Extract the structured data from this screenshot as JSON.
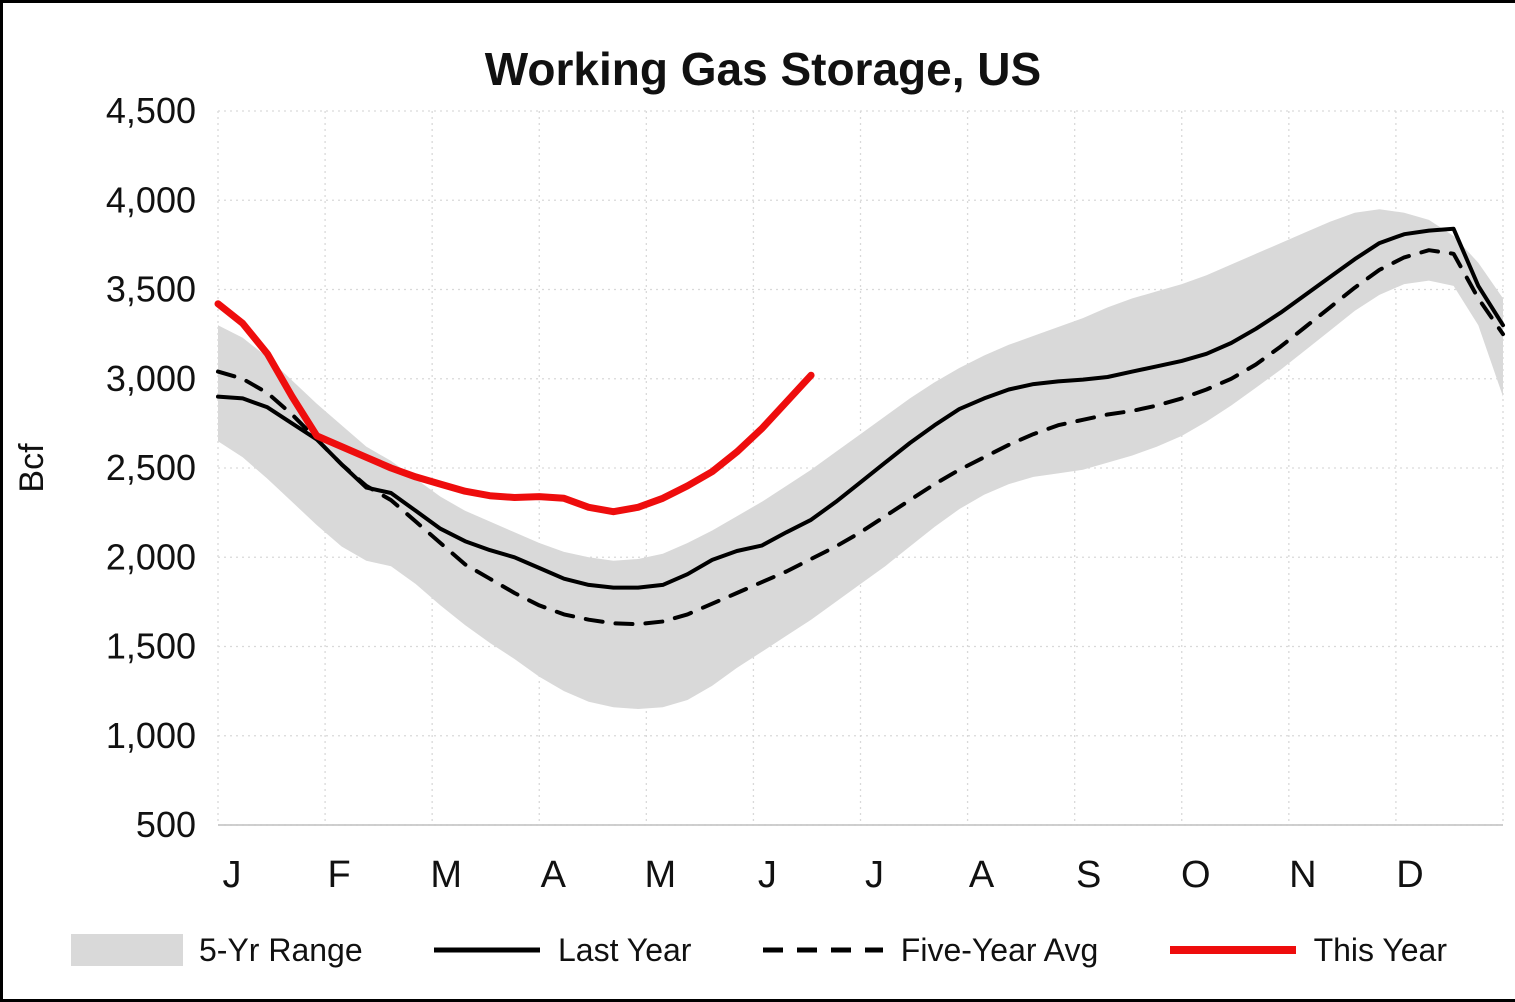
{
  "title": "Working Gas Storage, US",
  "chart_data": {
    "type": "line",
    "title": "Working Gas Storage, US",
    "xlabel": "",
    "ylabel": "Bcf",
    "ylim": [
      500,
      4500
    ],
    "ytick_step": 500,
    "ytick_labels": [
      "500",
      "1,000",
      "1,500",
      "2,000",
      "2,500",
      "3,000",
      "3,500",
      "4,000",
      "4,500"
    ],
    "x_unit": "weeks",
    "x_range_weeks": [
      0,
      52
    ],
    "month_labels": [
      "J",
      "F",
      "M",
      "A",
      "M",
      "J",
      "J",
      "A",
      "S",
      "O",
      "N",
      "D"
    ],
    "grid": true,
    "legend_position": "bottom",
    "colors": {
      "band": "#d9d9d9",
      "last_year": "#000000",
      "five_year_avg": "#000000",
      "this_year": "#ee0d0d",
      "gridline": "#d9d9d9",
      "axis_line": "#bfbfbf"
    },
    "band": {
      "name": "5-Yr Range",
      "upper": [
        3300,
        3230,
        3120,
        2990,
        2860,
        2740,
        2620,
        2540,
        2440,
        2340,
        2260,
        2200,
        2140,
        2080,
        2030,
        2000,
        1980,
        1990,
        2020,
        2080,
        2150,
        2230,
        2310,
        2400,
        2490,
        2590,
        2690,
        2790,
        2890,
        2980,
        3060,
        3130,
        3190,
        3240,
        3290,
        3340,
        3400,
        3450,
        3490,
        3530,
        3580,
        3640,
        3700,
        3760,
        3820,
        3880,
        3930,
        3950,
        3930,
        3890,
        3800,
        3650,
        3450
      ],
      "lower": [
        2650,
        2560,
        2440,
        2310,
        2180,
        2060,
        1980,
        1950,
        1850,
        1730,
        1620,
        1520,
        1430,
        1330,
        1250,
        1190,
        1160,
        1150,
        1160,
        1200,
        1280,
        1380,
        1470,
        1560,
        1650,
        1750,
        1850,
        1950,
        2060,
        2170,
        2270,
        2350,
        2410,
        2450,
        2470,
        2490,
        2530,
        2570,
        2620,
        2680,
        2760,
        2850,
        2950,
        3050,
        3160,
        3270,
        3380,
        3470,
        3530,
        3550,
        3520,
        3300,
        2900
      ]
    },
    "series": [
      {
        "name": "Last Year",
        "style": "solid",
        "color_key": "last_year",
        "stroke_width": 4,
        "start_week": 0,
        "values": [
          2900,
          2890,
          2840,
          2750,
          2660,
          2520,
          2390,
          2360,
          2260,
          2160,
          2090,
          2040,
          2000,
          1940,
          1880,
          1845,
          1830,
          1830,
          1845,
          1905,
          1985,
          2035,
          2065,
          2140,
          2210,
          2310,
          2420,
          2530,
          2640,
          2740,
          2830,
          2890,
          2940,
          2970,
          2985,
          2995,
          3010,
          3040,
          3070,
          3100,
          3140,
          3200,
          3280,
          3370,
          3470,
          3570,
          3670,
          3760,
          3810,
          3830,
          3840,
          3520,
          3300
        ]
      },
      {
        "name": "Five-Year Avg",
        "style": "dashed",
        "color_key": "five_year_avg",
        "stroke_width": 4,
        "start_week": 0,
        "values": [
          3040,
          3000,
          2920,
          2800,
          2660,
          2520,
          2400,
          2320,
          2200,
          2080,
          1960,
          1880,
          1800,
          1730,
          1680,
          1650,
          1630,
          1625,
          1640,
          1680,
          1740,
          1800,
          1860,
          1920,
          1990,
          2060,
          2140,
          2230,
          2320,
          2410,
          2490,
          2560,
          2630,
          2690,
          2740,
          2770,
          2800,
          2820,
          2850,
          2890,
          2940,
          3000,
          3080,
          3180,
          3290,
          3400,
          3510,
          3610,
          3680,
          3720,
          3700,
          3450,
          3250
        ]
      },
      {
        "name": "This Year",
        "style": "solid",
        "color_key": "this_year",
        "stroke_width": 7,
        "start_week": 0,
        "values": [
          3420,
          3310,
          3140,
          2900,
          2680,
          2620,
          2560,
          2500,
          2450,
          2410,
          2370,
          2345,
          2335,
          2340,
          2330,
          2280,
          2255,
          2280,
          2330,
          2400,
          2480,
          2590,
          2720,
          2870,
          3020
        ]
      }
    ]
  },
  "legend": {
    "items": [
      {
        "label": "5-Yr Range"
      },
      {
        "label": "Last Year"
      },
      {
        "label": "Five-Year Avg"
      },
      {
        "label": "This Year"
      }
    ]
  }
}
